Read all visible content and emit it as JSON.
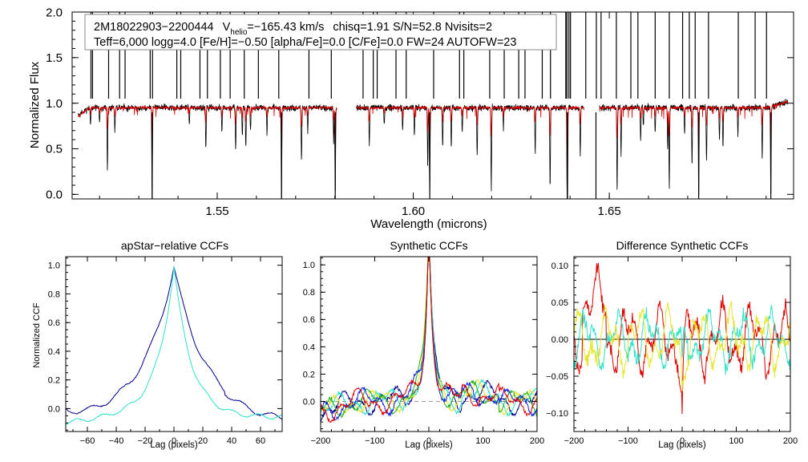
{
  "colors": {
    "black": "#000000",
    "red": "#dd0000",
    "navy": "#00008b",
    "cyan": "#30e0c8",
    "yellow": "#e6e630",
    "green": "#20b020",
    "blue": "#1020e0"
  },
  "chart_data": [
    {
      "id": "spectrum",
      "type": "line",
      "title": "",
      "xlabel": "Wavelength (microns)",
      "ylabel": "Normalized Flux",
      "xlim": [
        1.513,
        1.697
      ],
      "ylim": [
        -0.05,
        2.0
      ],
      "xticks": [
        1.55,
        1.6,
        1.65
      ],
      "xtick_labels": [
        "1.55",
        "1.60",
        "1.65"
      ],
      "yticks": [
        0.0,
        0.5,
        1.0,
        1.5,
        2.0
      ],
      "ytick_labels": [
        "0.0",
        "0.5",
        "1.0",
        "1.5",
        "2.0"
      ],
      "legend": {
        "line1_object": "2M18022903−2200444",
        "line1_vhelio_sym": "V",
        "line1_vhelio_sub": "helio",
        "line1_vhelio_val": "=−165.43 km/s",
        "line1_rest": "chisq=1.91  S/N=52.8  Nvisits=2",
        "line2": "Teff=6,000 logg=4.0 [Fe/H]=−0.50 [alpha/Fe]=0.0 [C/Fe]=0.0 FW=24 AUTOFW=23",
        "placement": "top-left"
      },
      "chips": [
        [
          1.5145,
          1.5805
        ],
        [
          1.5855,
          1.6435
        ],
        [
          1.6475,
          1.6955
        ]
      ],
      "series": [
        {
          "name": "observed",
          "color": "black",
          "baseline": 0.95
        },
        {
          "name": "model",
          "color": "red",
          "baseline": 0.95
        }
      ],
      "emission_spikes": [
        1.5178,
        1.5182,
        1.5223,
        1.5251,
        1.5265,
        1.5329,
        1.5335,
        1.5397,
        1.5407,
        1.5456,
        1.5475,
        1.5508,
        1.5533,
        1.5569,
        1.5605,
        1.5657,
        1.5734,
        1.5791,
        1.5872,
        1.5898,
        1.5908,
        1.5956,
        1.5982,
        1.6052,
        1.6118,
        1.6129,
        1.6195,
        1.6232,
        1.6269,
        1.6285,
        1.6329,
        1.635,
        1.6389,
        1.6392,
        1.6397,
        1.6401,
        1.644,
        1.6467,
        1.6479,
        1.6518,
        1.6555,
        1.6573,
        1.6617,
        1.6653,
        1.6687,
        1.6704,
        1.6719,
        1.6753,
        1.6829,
        1.6872,
        1.6901
      ],
      "absorption_dips": [
        [
          1.5177,
          0.76
        ],
        [
          1.52,
          0.79
        ],
        [
          1.522,
          0.25
        ],
        [
          1.5239,
          0.69
        ],
        [
          1.5334,
          -0.05
        ],
        [
          1.5429,
          0.78
        ],
        [
          1.5471,
          0.49
        ],
        [
          1.5512,
          0.67
        ],
        [
          1.5547,
          0.46
        ],
        [
          1.5564,
          0.63
        ],
        [
          1.5573,
          0.49
        ],
        [
          1.5585,
          0.69
        ],
        [
          1.5627,
          0.65
        ],
        [
          1.5664,
          -0.05
        ],
        [
          1.5715,
          0.35
        ],
        [
          1.5731,
          0.68
        ],
        [
          1.5797,
          0.56
        ],
        [
          1.5801,
          -0.05
        ],
        [
          1.5888,
          0.53
        ],
        [
          1.5926,
          0.77
        ],
        [
          1.5973,
          0.7
        ],
        [
          1.6003,
          0.63
        ],
        [
          1.6037,
          0.32
        ],
        [
          1.6042,
          -0.05
        ],
        [
          1.6075,
          0.5
        ],
        [
          1.6097,
          0.51
        ],
        [
          1.6125,
          0.69
        ],
        [
          1.6163,
          0.41
        ],
        [
          1.6199,
          0.05
        ],
        [
          1.623,
          0.73
        ],
        [
          1.6311,
          0.47
        ],
        [
          1.6349,
          0.04
        ],
        [
          1.6393,
          -0.05
        ],
        [
          1.6393,
          -0.05
        ],
        [
          1.6426,
          0.42
        ],
        [
          1.6466,
          -0.05
        ],
        [
          1.652,
          0.04
        ],
        [
          1.653,
          0.42
        ],
        [
          1.658,
          0.58
        ],
        [
          1.6587,
          0.73
        ],
        [
          1.6617,
          0.68
        ],
        [
          1.6649,
          0.47
        ],
        [
          1.6653,
          0.05
        ],
        [
          1.6692,
          0.66
        ],
        [
          1.6711,
          0.31
        ],
        [
          1.6728,
          -0.05
        ],
        [
          1.6748,
          0.38
        ],
        [
          1.6781,
          0.6
        ],
        [
          1.679,
          0.51
        ],
        [
          1.6828,
          0.66
        ],
        [
          1.689,
          0.42
        ],
        [
          1.6912,
          -0.05
        ]
      ]
    },
    {
      "id": "apstar-ccf",
      "type": "line",
      "title": "apStar−relative CCFs",
      "xlabel": "Lag (pixels)",
      "ylabel": "Normalized CCF",
      "xlim": [
        -75,
        75
      ],
      "ylim": [
        -0.16,
        1.06
      ],
      "xticks": [
        -60,
        -40,
        -20,
        0,
        20,
        40,
        60
      ],
      "xtick_labels": [
        "−60",
        "−40",
        "−20",
        "0",
        "20",
        "40",
        "60"
      ],
      "yticks": [
        0.0,
        0.2,
        0.4,
        0.6,
        0.8,
        1.0
      ],
      "ytick_labels": [
        "0.0",
        "0.2",
        "0.4",
        "0.6",
        "0.8",
        "1.0"
      ],
      "series": [
        {
          "name": "ccf-1",
          "color": "navy",
          "peak": 0.99,
          "width": 22,
          "floor": -0.08
        },
        {
          "name": "ccf-2",
          "color": "cyan",
          "peak": 0.99,
          "width": 12,
          "floor": -0.06
        }
      ]
    },
    {
      "id": "synthetic-ccf",
      "type": "line",
      "title": "Synthetic CCFs",
      "xlabel": "Lag (pixels)",
      "ylabel": "",
      "xlim": [
        -200,
        200
      ],
      "ylim": [
        -0.22,
        1.06
      ],
      "xticks": [
        -200,
        -100,
        0,
        100,
        200
      ],
      "xtick_labels": [
        "−200",
        "−100",
        "0",
        "100",
        "200"
      ],
      "yticks": [
        0.0,
        0.2,
        0.4,
        0.6,
        0.8,
        1.0
      ],
      "ytick_labels": [
        "0.0",
        "0.2",
        "0.4",
        "0.6",
        "0.8",
        "1.0"
      ],
      "zero_line": "dashed",
      "series": [
        {
          "name": "navy",
          "color": "navy"
        },
        {
          "name": "cyan",
          "color": "cyan"
        },
        {
          "name": "yellow",
          "color": "yellow"
        },
        {
          "name": "green",
          "color": "green"
        },
        {
          "name": "blue",
          "color": "blue"
        },
        {
          "name": "red",
          "color": "red"
        }
      ]
    },
    {
      "id": "difference-ccf",
      "type": "line",
      "title": "Difference Synthetic CCFs",
      "xlabel": "Lag (pixels)",
      "ylabel": "",
      "xlim": [
        -200,
        200
      ],
      "ylim": [
        -0.125,
        0.112
      ],
      "xticks": [
        -200,
        -100,
        0,
        100,
        200
      ],
      "xtick_labels": [
        "−200",
        "−100",
        "0",
        "100",
        "200"
      ],
      "yticks": [
        -0.1,
        -0.05,
        0.0,
        0.05,
        0.1
      ],
      "ytick_labels": [
        "−0.10",
        "−0.05",
        "0.00",
        "0.05",
        "0.10"
      ],
      "zero_line": "solid",
      "series": [
        {
          "name": "red",
          "color": "red",
          "amp": 0.05
        },
        {
          "name": "cyan",
          "color": "cyan",
          "amp": 0.04
        },
        {
          "name": "yellow",
          "color": "yellow",
          "amp": 0.045
        }
      ]
    }
  ]
}
